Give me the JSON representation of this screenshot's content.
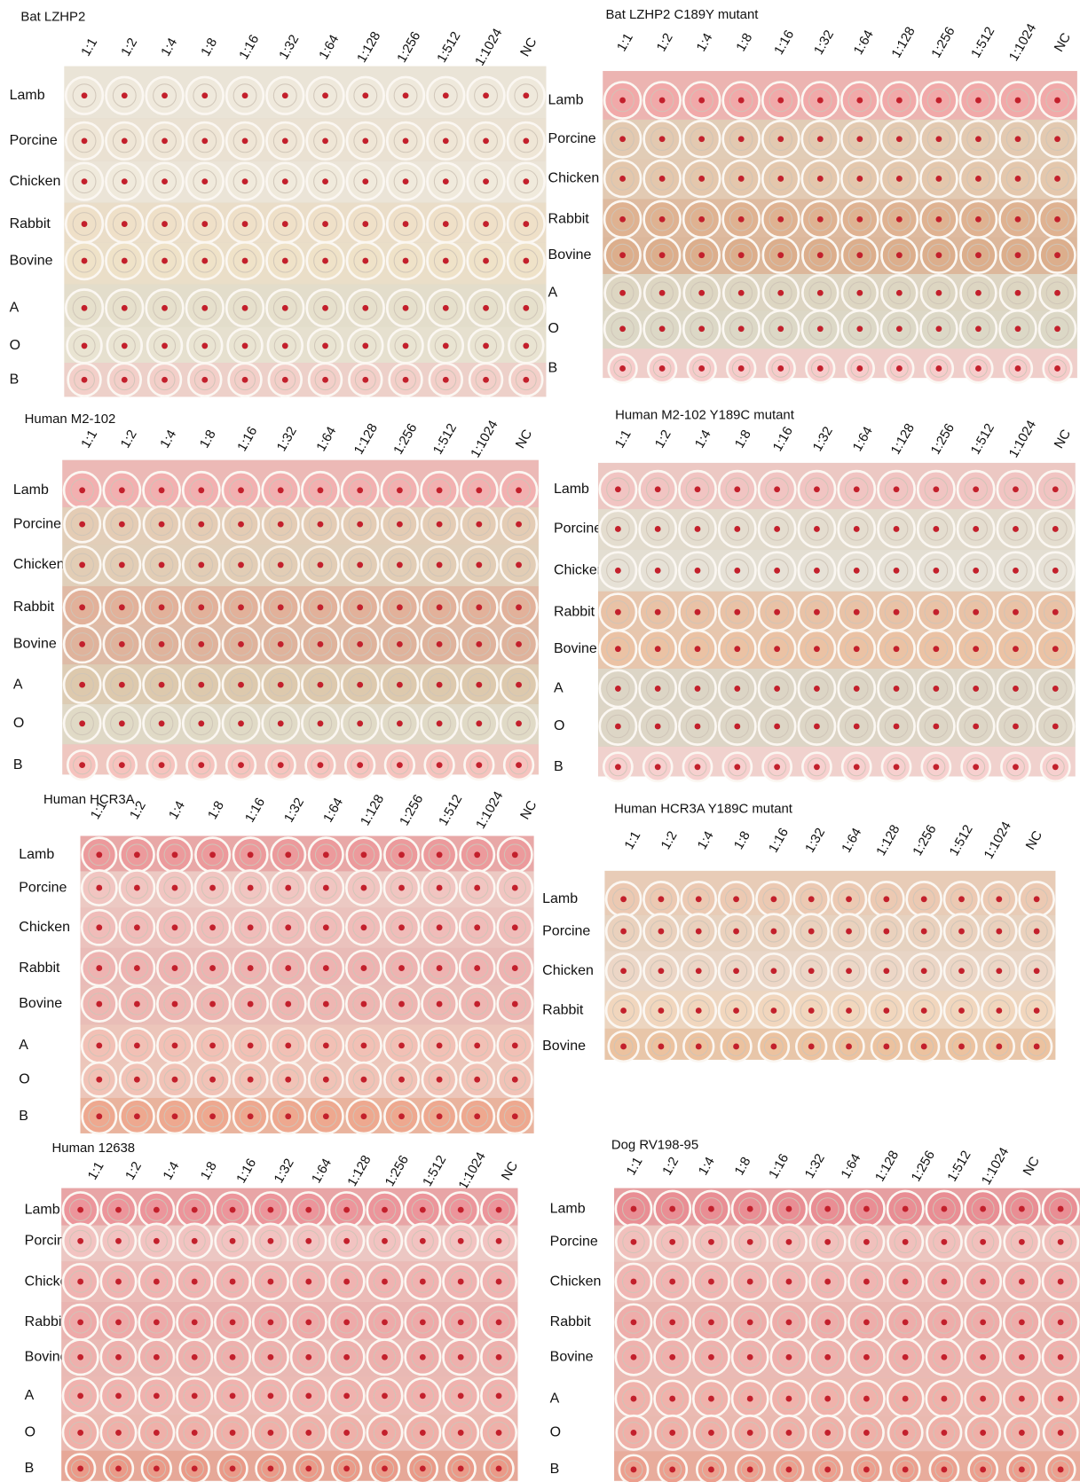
{
  "panels": [
    {
      "title": "Bat LZHP2",
      "columns": [
        "1:1",
        "1:2",
        "1:4",
        "1:8",
        "1:16",
        "1:32",
        "1:64",
        "1:128",
        "1:256",
        "1:512",
        "1:1024",
        "NC"
      ],
      "rows": [
        "Lamb",
        "Porcine",
        "Chicken",
        "Rabbit",
        "Bovine",
        "A",
        "O",
        "B"
      ]
    },
    {
      "title": "Bat LZHP2 C189Y mutant",
      "columns": [
        "1:1",
        "1:2",
        "1:4",
        "1:8",
        "1:16",
        "1:32",
        "1:64",
        "1:128",
        "1:256",
        "1:512",
        "1:1024",
        "NC"
      ],
      "rows": [
        "Lamb",
        "Porcine",
        "Chicken",
        "Rabbit",
        "Bovine",
        "A",
        "O",
        "B"
      ]
    },
    {
      "title": "Human M2-102",
      "columns": [
        "1:1",
        "1:2",
        "1:4",
        "1:8",
        "1:16",
        "1:32",
        "1:64",
        "1:128",
        "1:256",
        "1:512",
        "1:1024",
        "NC"
      ],
      "rows": [
        "Lamb",
        "Porcine",
        "Chicken",
        "Rabbit",
        "Bovine",
        "A",
        "O",
        "B"
      ]
    },
    {
      "title": "Human M2-102 Y189C mutant",
      "columns": [
        "1:1",
        "1:2",
        "1:4",
        "1:8",
        "1:16",
        "1:32",
        "1:64",
        "1:128",
        "1:256",
        "1:512",
        "1:1024",
        "NC"
      ],
      "rows": [
        "Lamb",
        "Porcine",
        "Chicken",
        "Rabbit",
        "Bovine",
        "A",
        "O",
        "B"
      ]
    },
    {
      "title": "Human HCR3A",
      "columns": [
        "1:1",
        "1:2",
        "1:4",
        "1:8",
        "1:16",
        "1:32",
        "1:64",
        "1:128",
        "1:256",
        "1:512",
        "1:1024",
        "NC"
      ],
      "rows": [
        "Lamb",
        "Porcine",
        "Chicken",
        "Rabbit",
        "Bovine",
        "A",
        "O",
        "B"
      ]
    },
    {
      "title": "Human HCR3A Y189C mutant",
      "columns": [
        "1:1",
        "1:2",
        "1:4",
        "1:8",
        "1:16",
        "1:32",
        "1:64",
        "1:128",
        "1:256",
        "1:512",
        "1:1024",
        "NC"
      ],
      "rows": [
        "Lamb",
        "Porcine",
        "Chicken",
        "Rabbit",
        "Bovine"
      ]
    },
    {
      "title": "Human  12638",
      "columns": [
        "1:1",
        "1:2",
        "1:4",
        "1:8",
        "1:16",
        "1:32",
        "1:64",
        "1:128",
        "1:256",
        "1:512",
        "1:1024",
        "NC"
      ],
      "rows": [
        "Lamb",
        "Porcine",
        "Chicken",
        "Rabbit",
        "Bovine",
        "A",
        "O",
        "B"
      ]
    },
    {
      "title": "Dog RV198-95",
      "columns": [
        "1:1",
        "1:2",
        "1:4",
        "1:8",
        "1:16",
        "1:32",
        "1:64",
        "1:128",
        "1:256",
        "1:512",
        "1:1024",
        "NC"
      ],
      "rows": [
        "Lamb",
        "Porcine",
        "Chicken",
        "Rabbit",
        "Bovine",
        "A",
        "O",
        "B"
      ]
    }
  ]
}
